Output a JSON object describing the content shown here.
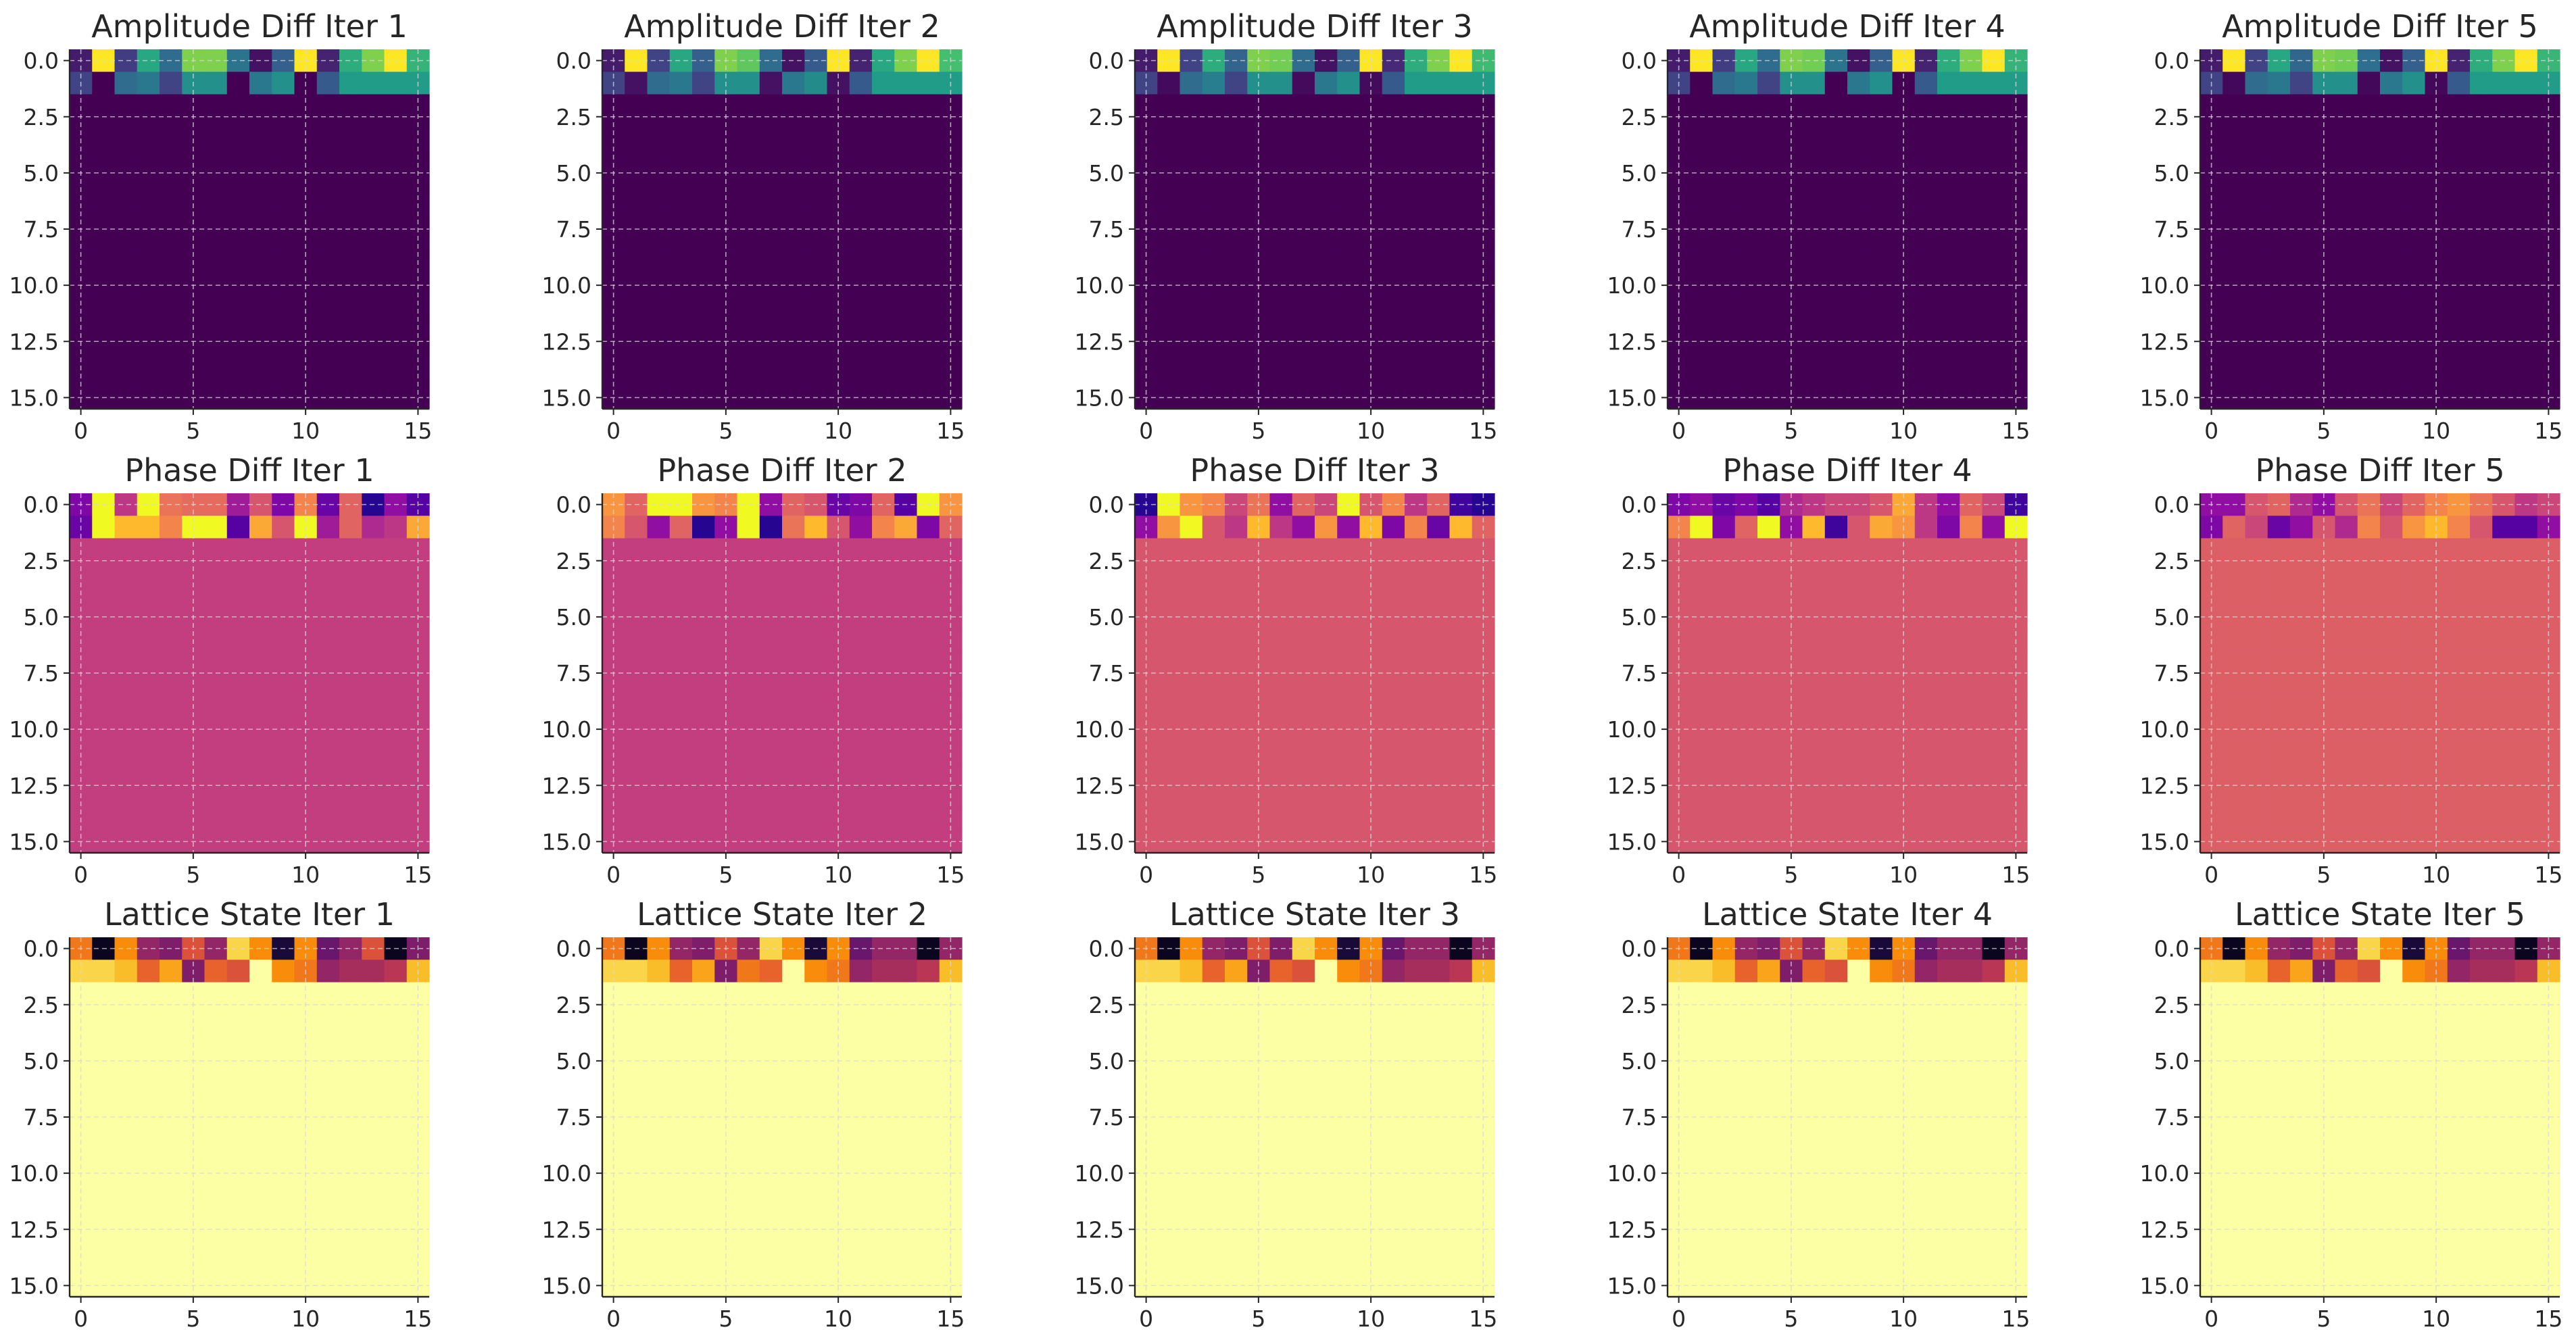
{
  "figure": {
    "style": "matplotlib",
    "grid": true,
    "colormaps": {
      "viridis": [
        "#440154",
        "#46327e",
        "#365c8d",
        "#277f8e",
        "#1fa187",
        "#4ac16d",
        "#a0da39",
        "#fde725"
      ],
      "plasma": [
        "#0d0887",
        "#5302a3",
        "#8b0aa5",
        "#b83289",
        "#db5c68",
        "#f48849",
        "#febd2a",
        "#f0f921"
      ],
      "inferno": [
        "#000004",
        "#1f0c48",
        "#550f6d",
        "#88226a",
        "#ba3655",
        "#e35933",
        "#f98c0a",
        "#f9c932",
        "#fcffa4"
      ]
    }
  },
  "chart_data": [
    {
      "type": "heatmap",
      "title": "Amplitude Diff Iter 1",
      "colormap": "viridis",
      "rows": 16,
      "cols": 16,
      "x_ticks": [
        0,
        5,
        10,
        15
      ],
      "y_ticks": [
        0.0,
        2.5,
        5.0,
        7.5,
        10.0,
        12.5,
        15.0
      ],
      "xlim": [
        -0.5,
        15.5
      ],
      "ylim": [
        15.5,
        -0.5
      ],
      "row0": [
        0.08,
        1.0,
        0.18,
        0.6,
        0.35,
        0.8,
        0.8,
        0.38,
        0.05,
        0.3,
        1.0,
        0.1,
        0.62,
        0.8,
        1.0,
        0.65
      ],
      "row1": [
        0.2,
        0.0,
        0.35,
        0.4,
        0.2,
        0.5,
        0.5,
        0.0,
        0.4,
        0.5,
        0.0,
        0.28,
        0.55,
        0.55,
        0.55,
        0.55
      ],
      "rest": 0.0
    },
    {
      "type": "heatmap",
      "title": "Amplitude Diff Iter 2",
      "colormap": "viridis",
      "rows": 16,
      "cols": 16,
      "x_ticks": [
        0,
        5,
        10,
        15
      ],
      "y_ticks": [
        0.0,
        2.5,
        5.0,
        7.5,
        10.0,
        12.5,
        15.0
      ],
      "xlim": [
        -0.5,
        15.5
      ],
      "ylim": [
        15.5,
        -0.5
      ],
      "row0": [
        0.08,
        1.0,
        0.2,
        0.6,
        0.3,
        0.8,
        0.75,
        0.35,
        0.05,
        0.28,
        1.0,
        0.1,
        0.6,
        0.8,
        1.0,
        0.7
      ],
      "row1": [
        0.2,
        0.05,
        0.35,
        0.4,
        0.2,
        0.5,
        0.5,
        0.05,
        0.4,
        0.48,
        0.05,
        0.28,
        0.55,
        0.55,
        0.55,
        0.55
      ],
      "rest": 0.0
    },
    {
      "type": "heatmap",
      "title": "Amplitude Diff Iter 3",
      "colormap": "viridis",
      "rows": 16,
      "cols": 16,
      "x_ticks": [
        0,
        5,
        10,
        15
      ],
      "y_ticks": [
        0.0,
        2.5,
        5.0,
        7.5,
        10.0,
        12.5,
        15.0
      ],
      "xlim": [
        -0.5,
        15.5
      ],
      "ylim": [
        15.5,
        -0.5
      ],
      "row0": [
        0.08,
        1.0,
        0.2,
        0.62,
        0.32,
        0.8,
        0.78,
        0.35,
        0.05,
        0.3,
        1.0,
        0.12,
        0.62,
        0.8,
        1.0,
        0.68
      ],
      "row1": [
        0.2,
        0.03,
        0.35,
        0.42,
        0.2,
        0.5,
        0.5,
        0.03,
        0.4,
        0.5,
        0.03,
        0.28,
        0.55,
        0.55,
        0.55,
        0.55
      ],
      "rest": 0.0
    },
    {
      "type": "heatmap",
      "title": "Amplitude Diff Iter 4",
      "colormap": "viridis",
      "rows": 16,
      "cols": 16,
      "x_ticks": [
        0,
        5,
        10,
        15
      ],
      "y_ticks": [
        0.0,
        2.5,
        5.0,
        7.5,
        10.0,
        12.5,
        15.0
      ],
      "xlim": [
        -0.5,
        15.5
      ],
      "ylim": [
        15.5,
        -0.5
      ],
      "row0": [
        0.08,
        1.0,
        0.18,
        0.6,
        0.35,
        0.8,
        0.78,
        0.38,
        0.05,
        0.3,
        1.0,
        0.1,
        0.62,
        0.8,
        1.0,
        0.65
      ],
      "row1": [
        0.2,
        0.0,
        0.35,
        0.4,
        0.2,
        0.5,
        0.5,
        0.0,
        0.4,
        0.5,
        0.0,
        0.28,
        0.55,
        0.55,
        0.55,
        0.55
      ],
      "rest": 0.0
    },
    {
      "type": "heatmap",
      "title": "Amplitude Diff Iter 5",
      "colormap": "viridis",
      "rows": 16,
      "cols": 16,
      "x_ticks": [
        0,
        5,
        10,
        15
      ],
      "y_ticks": [
        0.0,
        2.5,
        5.0,
        7.5,
        10.0,
        12.5,
        15.0
      ],
      "xlim": [
        -0.5,
        15.5
      ],
      "ylim": [
        15.5,
        -0.5
      ],
      "row0": [
        0.08,
        1.0,
        0.2,
        0.6,
        0.33,
        0.8,
        0.78,
        0.36,
        0.05,
        0.3,
        1.0,
        0.1,
        0.62,
        0.8,
        1.0,
        0.66
      ],
      "row1": [
        0.2,
        0.02,
        0.35,
        0.4,
        0.2,
        0.5,
        0.5,
        0.02,
        0.4,
        0.5,
        0.02,
        0.28,
        0.55,
        0.55,
        0.55,
        0.55
      ],
      "rest": 0.0
    },
    {
      "type": "heatmap",
      "title": "Phase Diff Iter 1",
      "colormap": "plasma",
      "rows": 16,
      "cols": 16,
      "x_ticks": [
        0,
        5,
        10,
        15
      ],
      "y_ticks": [
        0.0,
        2.5,
        5.0,
        7.5,
        10.0,
        12.5,
        15.0
      ],
      "xlim": [
        -0.5,
        15.5
      ],
      "ylim": [
        15.5,
        -0.5
      ],
      "row0": [
        0.25,
        1.0,
        0.45,
        1.0,
        0.65,
        0.62,
        0.62,
        0.35,
        0.55,
        0.25,
        0.7,
        0.2,
        0.6,
        0.05,
        0.3,
        0.15
      ],
      "row1": [
        0.2,
        1.0,
        0.85,
        0.85,
        0.7,
        1.0,
        1.0,
        0.15,
        0.8,
        0.55,
        1.0,
        0.35,
        0.6,
        0.4,
        0.45,
        0.8
      ],
      "rest": 0.47
    },
    {
      "type": "heatmap",
      "title": "Phase Diff Iter 2",
      "colormap": "plasma",
      "rows": 16,
      "cols": 16,
      "x_ticks": [
        0,
        5,
        10,
        15
      ],
      "y_ticks": [
        0.0,
        2.5,
        5.0,
        7.5,
        10.0,
        12.5,
        15.0
      ],
      "xlim": [
        -0.5,
        15.5
      ],
      "ylim": [
        15.5,
        -0.5
      ],
      "row0": [
        0.75,
        0.6,
        1.0,
        1.0,
        0.75,
        0.7,
        1.0,
        0.3,
        0.6,
        0.55,
        0.2,
        0.25,
        0.6,
        0.15,
        1.0,
        0.75
      ],
      "row1": [
        0.7,
        0.55,
        0.3,
        0.6,
        0.05,
        0.3,
        1.0,
        0.05,
        0.65,
        0.85,
        0.55,
        0.3,
        0.7,
        0.8,
        0.25,
        0.6
      ],
      "rest": 0.47
    },
    {
      "type": "heatmap",
      "title": "Phase Diff Iter 3",
      "colormap": "plasma",
      "rows": 16,
      "cols": 16,
      "x_ticks": [
        0,
        5,
        10,
        15
      ],
      "y_ticks": [
        0.0,
        2.5,
        5.0,
        7.5,
        10.0,
        12.5,
        15.0
      ],
      "xlim": [
        -0.5,
        15.5
      ],
      "ylim": [
        15.5,
        -0.5
      ],
      "row0": [
        0.05,
        1.0,
        0.75,
        0.7,
        0.5,
        0.65,
        0.3,
        0.6,
        0.5,
        1.0,
        0.55,
        0.7,
        0.45,
        0.6,
        0.1,
        0.05
      ],
      "row1": [
        0.3,
        0.75,
        1.0,
        0.55,
        0.45,
        0.85,
        0.45,
        0.3,
        0.75,
        0.3,
        0.85,
        0.25,
        0.7,
        0.2,
        0.85,
        0.6
      ],
      "rest": 0.55
    },
    {
      "type": "heatmap",
      "title": "Phase Diff Iter 4",
      "colormap": "plasma",
      "rows": 16,
      "cols": 16,
      "x_ticks": [
        0,
        5,
        10,
        15
      ],
      "y_ticks": [
        0.0,
        2.5,
        5.0,
        7.5,
        10.0,
        12.5,
        15.0
      ],
      "xlim": [
        -0.5,
        15.5
      ],
      "ylim": [
        15.5,
        -0.5
      ],
      "row0": [
        0.25,
        0.3,
        0.2,
        0.25,
        0.15,
        0.4,
        0.45,
        0.5,
        0.5,
        0.55,
        0.8,
        0.45,
        0.3,
        0.6,
        0.5,
        0.1
      ],
      "row1": [
        0.7,
        1.0,
        0.25,
        0.6,
        1.0,
        0.3,
        0.85,
        0.1,
        0.55,
        0.8,
        0.75,
        0.45,
        0.25,
        0.7,
        0.3,
        1.0
      ],
      "rest": 0.55
    },
    {
      "type": "heatmap",
      "title": "Phase Diff Iter 5",
      "colormap": "plasma",
      "rows": 16,
      "cols": 16,
      "x_ticks": [
        0,
        5,
        10,
        15
      ],
      "y_ticks": [
        0.0,
        2.5,
        5.0,
        7.5,
        10.0,
        12.5,
        15.0
      ],
      "xlim": [
        -0.5,
        15.5
      ],
      "ylim": [
        15.5,
        -0.5
      ],
      "row0": [
        0.3,
        0.3,
        0.55,
        0.6,
        0.4,
        0.3,
        0.55,
        0.65,
        0.5,
        0.6,
        0.7,
        0.75,
        0.65,
        0.55,
        0.45,
        0.5
      ],
      "row1": [
        0.25,
        0.6,
        0.5,
        0.2,
        0.3,
        0.55,
        0.4,
        0.7,
        0.55,
        0.75,
        0.85,
        0.7,
        0.55,
        0.15,
        0.15,
        0.3
      ],
      "rest": 0.58
    },
    {
      "type": "heatmap",
      "title": "Lattice State Iter 1",
      "colormap": "inferno",
      "rows": 16,
      "cols": 16,
      "x_ticks": [
        0,
        5,
        10,
        15
      ],
      "y_ticks": [
        0.0,
        2.5,
        5.0,
        7.5,
        10.0,
        12.5,
        15.0
      ],
      "xlim": [
        -0.5,
        15.5
      ],
      "ylim": [
        15.5,
        -0.5
      ],
      "row0": [
        0.7,
        0.05,
        0.75,
        0.4,
        0.35,
        0.6,
        0.4,
        0.9,
        0.75,
        0.1,
        0.75,
        0.3,
        0.4,
        0.6,
        0.05,
        0.35
      ],
      "row1": [
        0.9,
        0.9,
        0.85,
        0.65,
        0.8,
        0.35,
        0.65,
        0.6,
        1.0,
        0.75,
        0.7,
        0.4,
        0.45,
        0.45,
        0.5,
        0.85
      ],
      "rest": 1.0
    },
    {
      "type": "heatmap",
      "title": "Lattice State Iter 2",
      "colormap": "inferno",
      "rows": 16,
      "cols": 16,
      "x_ticks": [
        0,
        5,
        10,
        15
      ],
      "y_ticks": [
        0.0,
        2.5,
        5.0,
        7.5,
        10.0,
        12.5,
        15.0
      ],
      "xlim": [
        -0.5,
        15.5
      ],
      "ylim": [
        15.5,
        -0.5
      ],
      "row0": [
        0.7,
        0.05,
        0.75,
        0.4,
        0.35,
        0.6,
        0.4,
        0.9,
        0.75,
        0.1,
        0.75,
        0.3,
        0.4,
        0.4,
        0.05,
        0.4
      ],
      "row1": [
        0.9,
        0.9,
        0.85,
        0.65,
        0.8,
        0.35,
        0.7,
        0.65,
        1.0,
        0.75,
        0.7,
        0.4,
        0.45,
        0.45,
        0.5,
        0.85
      ],
      "rest": 1.0
    },
    {
      "type": "heatmap",
      "title": "Lattice State Iter 3",
      "colormap": "inferno",
      "rows": 16,
      "cols": 16,
      "x_ticks": [
        0,
        5,
        10,
        15
      ],
      "y_ticks": [
        0.0,
        2.5,
        5.0,
        7.5,
        10.0,
        12.5,
        15.0
      ],
      "xlim": [
        -0.5,
        15.5
      ],
      "ylim": [
        15.5,
        -0.5
      ],
      "row0": [
        0.7,
        0.05,
        0.75,
        0.4,
        0.35,
        0.6,
        0.35,
        0.9,
        0.75,
        0.1,
        0.75,
        0.3,
        0.4,
        0.4,
        0.05,
        0.4
      ],
      "row1": [
        0.9,
        0.9,
        0.85,
        0.65,
        0.8,
        0.35,
        0.65,
        0.6,
        1.0,
        0.75,
        0.7,
        0.4,
        0.45,
        0.45,
        0.5,
        0.85
      ],
      "rest": 1.0
    },
    {
      "type": "heatmap",
      "title": "Lattice State Iter 4",
      "colormap": "inferno",
      "rows": 16,
      "cols": 16,
      "x_ticks": [
        0,
        5,
        10,
        15
      ],
      "y_ticks": [
        0.0,
        2.5,
        5.0,
        7.5,
        10.0,
        12.5,
        15.0
      ],
      "xlim": [
        -0.5,
        15.5
      ],
      "ylim": [
        15.5,
        -0.5
      ],
      "row0": [
        0.7,
        0.05,
        0.75,
        0.4,
        0.35,
        0.6,
        0.4,
        0.9,
        0.75,
        0.1,
        0.75,
        0.3,
        0.4,
        0.4,
        0.05,
        0.4
      ],
      "row1": [
        0.9,
        0.9,
        0.85,
        0.65,
        0.8,
        0.35,
        0.65,
        0.6,
        1.0,
        0.75,
        0.7,
        0.4,
        0.45,
        0.45,
        0.5,
        0.85
      ],
      "rest": 1.0
    },
    {
      "type": "heatmap",
      "title": "Lattice State Iter 5",
      "colormap": "inferno",
      "rows": 16,
      "cols": 16,
      "x_ticks": [
        0,
        5,
        10,
        15
      ],
      "y_ticks": [
        0.0,
        2.5,
        5.0,
        7.5,
        10.0,
        12.5,
        15.0
      ],
      "xlim": [
        -0.5,
        15.5
      ],
      "ylim": [
        15.5,
        -0.5
      ],
      "row0": [
        0.7,
        0.05,
        0.75,
        0.4,
        0.35,
        0.6,
        0.4,
        0.9,
        0.75,
        0.1,
        0.75,
        0.3,
        0.4,
        0.4,
        0.05,
        0.4
      ],
      "row1": [
        0.9,
        0.9,
        0.85,
        0.65,
        0.8,
        0.35,
        0.65,
        0.6,
        1.0,
        0.75,
        0.7,
        0.4,
        0.45,
        0.45,
        0.5,
        0.85
      ],
      "rest": 1.0
    }
  ]
}
